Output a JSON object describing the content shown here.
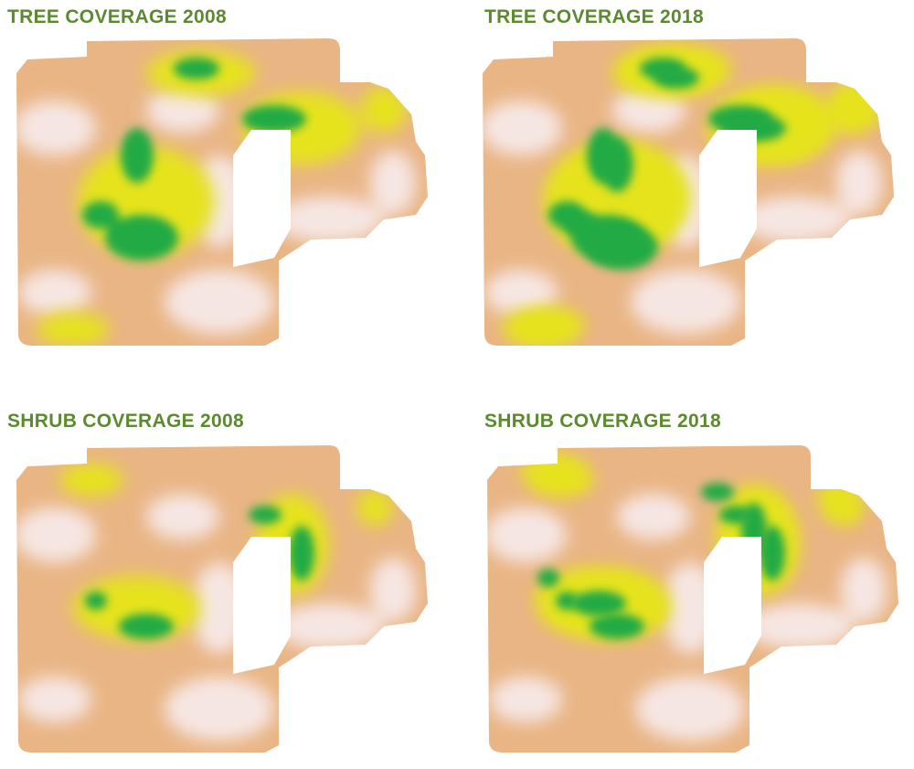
{
  "panels": [
    {
      "title": "TREE COVERAGE 2008"
    },
    {
      "title": "TREE COVERAGE 2018"
    },
    {
      "title": "SHRUB COVERAGE 2008"
    },
    {
      "title": "SHRUB COVERAGE 2018"
    }
  ]
}
